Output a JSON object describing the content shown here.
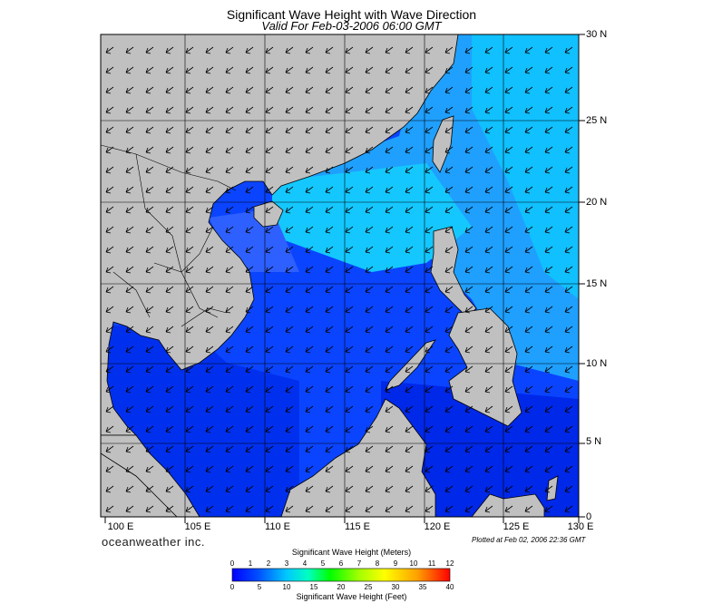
{
  "title": "Significant Wave Height with Wave Direction",
  "subtitle": "Valid For Feb-03-2006 06:00 GMT",
  "lat_labels": [
    "30 N",
    "25 N",
    "20 N",
    "15 N",
    "10 N",
    "5 N",
    "0"
  ],
  "lon_labels": [
    "100 E",
    "105 E",
    "110 E",
    "115 E",
    "120 E",
    "125 E",
    "130 E"
  ],
  "brand": "oceanweather inc.",
  "plotted": "Plotted at Feb 02, 2006 22:36 GMT",
  "colorbar": {
    "title_meters": "Significant Wave Height (Meters)",
    "title_feet": "Significant Wave Height (Feet)",
    "meters_ticks": [
      "0",
      "1",
      "2",
      "3",
      "4",
      "5",
      "6",
      "7",
      "8",
      "9",
      "10",
      "11",
      "12"
    ],
    "feet_ticks": [
      "0",
      "5",
      "10",
      "15",
      "20",
      "25",
      "30",
      "35",
      "40"
    ],
    "colors": [
      "#0000ff",
      "#0060ff",
      "#00b0ff",
      "#00ffff",
      "#00ff90",
      "#00ff00",
      "#80ff00",
      "#d0ff00",
      "#ffff00",
      "#ffc000",
      "#ff8000",
      "#ff3000",
      "#ff0000"
    ]
  },
  "map": {
    "lon_range": [
      99,
      130
    ],
    "lat_range": [
      0,
      30
    ],
    "land_color": "#c0c0c0",
    "sea_colors": {
      "low": "#0000e6",
      "mid": "#0a4cff",
      "high": "#00b4ff",
      "peak": "#12ccff"
    },
    "wave_direction": "NE to SW"
  }
}
